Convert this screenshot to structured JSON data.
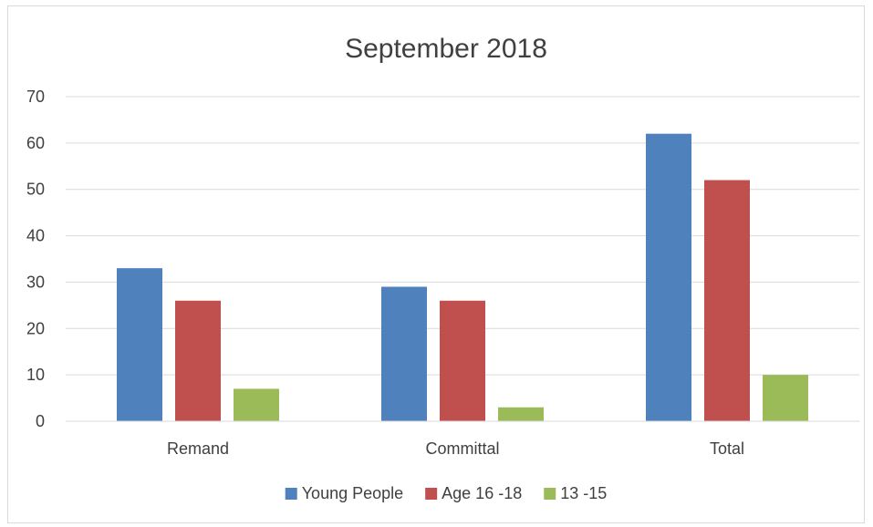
{
  "chart_data": {
    "type": "bar",
    "title": "September 2018",
    "xlabel": "",
    "ylabel": "",
    "categories": [
      "Remand",
      "Committal",
      "Total"
    ],
    "series": [
      {
        "name": "Young People",
        "values": [
          33,
          29,
          62
        ],
        "color": "#4f81bd"
      },
      {
        "name": "Age 16 -18",
        "values": [
          26,
          26,
          52
        ],
        "color": "#c0504d"
      },
      {
        "name": "13 -15",
        "values": [
          7,
          3,
          10
        ],
        "color": "#9bbb59"
      }
    ],
    "ylim": [
      0,
      70
    ],
    "yticks": [
      0,
      10,
      20,
      30,
      40,
      50,
      60,
      70
    ],
    "grid": true,
    "legend": "bottom"
  }
}
